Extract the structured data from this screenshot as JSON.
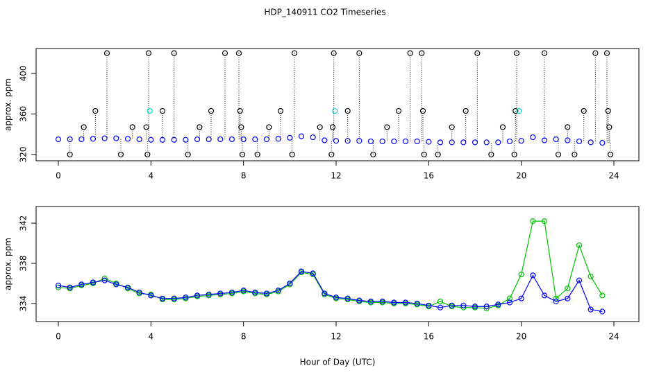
{
  "title": "HDP_140911  CO2 Timeseries",
  "chart_data": [
    {
      "type": "scatter",
      "y_label": "approx. ppm",
      "xlim": [
        -0.96,
        25.08
      ],
      "xticks": [
        0,
        4,
        8,
        12,
        16,
        20,
        24
      ],
      "ylim": [
        313.8,
        424.6
      ],
      "yticks": [
        320,
        360,
        400
      ],
      "series": [
        {
          "color": "#0000ff",
          "marker": "circle",
          "x": [
            0,
            0.5,
            1,
            1.5,
            2,
            2.5,
            3,
            3.5,
            4,
            4.5,
            5,
            5.5,
            6,
            6.5,
            7,
            7.5,
            8,
            8.5,
            9,
            9.5,
            10,
            10.5,
            11,
            11.5,
            12,
            12.5,
            13,
            13.5,
            14,
            14.5,
            15,
            15.5,
            16,
            16.5,
            17,
            17.5,
            18,
            18.5,
            19,
            19.5,
            20,
            20.5,
            21,
            21.5,
            22,
            22.5,
            23,
            23.5
          ],
          "values": [
            335,
            335,
            335,
            335.5,
            336,
            336,
            335.5,
            335,
            334.5,
            334.5,
            334.5,
            334.5,
            335,
            335,
            335,
            335,
            335,
            335,
            335,
            335.5,
            336.5,
            338,
            337,
            334,
            333.5,
            333.5,
            333.5,
            333,
            333,
            333,
            333,
            333,
            332.5,
            332,
            332,
            332,
            332,
            332,
            332,
            333,
            333.5,
            337,
            334,
            335,
            334,
            333,
            332,
            331.5
          ]
        },
        {
          "color": "#000000",
          "marker": "circle",
          "droplines": true,
          "x": [
            0.5,
            1.1,
            1.6,
            2.1,
            2.7,
            3.2,
            3.8,
            3.85,
            3.9,
            4.5,
            5.0,
            5.6,
            6.1,
            6.6,
            7.2,
            7.8,
            7.85,
            7.9,
            7.95,
            8.6,
            9.1,
            9.6,
            10.1,
            10.2,
            11.3,
            11.8,
            11.85,
            11.9,
            12.5,
            13.0,
            13.6,
            14.2,
            14.7,
            15.2,
            15.7,
            15.75,
            15.8,
            16.4,
            17.0,
            17.6,
            18.1,
            18.7,
            19.2,
            19.8,
            19.75,
            19.7,
            21.0,
            21.6,
            22.0,
            22.3,
            22.7,
            23.2,
            23.7,
            23.75,
            23.8,
            23.85
          ],
          "values": [
            320,
            347,
            363,
            420,
            320,
            347,
            347,
            320,
            420,
            363,
            420,
            320,
            347,
            363,
            420,
            420,
            363,
            347,
            320,
            320,
            347,
            363,
            320,
            420,
            347,
            320,
            347,
            420,
            363,
            420,
            320,
            347,
            363,
            420,
            420,
            363,
            320,
            320,
            347,
            363,
            420,
            320,
            347,
            420,
            363,
            320,
            420,
            320,
            347,
            320,
            363,
            420,
            420,
            363,
            347,
            320
          ]
        },
        {
          "color": "#00d0d0",
          "marker": "circle",
          "x": [
            3.95,
            11.95,
            19.9
          ],
          "values": [
            363,
            363,
            363
          ]
        }
      ]
    },
    {
      "type": "line",
      "y_label": "approx. ppm",
      "x_label": "Hour of Day (UTC)",
      "xlim": [
        -0.96,
        25.08
      ],
      "xticks": [
        0,
        4,
        8,
        12,
        16,
        20,
        24
      ],
      "ylim": [
        332.2,
        343.66
      ],
      "yticks": [
        334,
        338,
        342
      ],
      "series": [
        {
          "color": "#00c000",
          "marker": "circle",
          "x": [
            0,
            0.5,
            1,
            1.5,
            2,
            2.5,
            3,
            3.5,
            4,
            4.5,
            5,
            5.5,
            6,
            6.5,
            7,
            7.5,
            8,
            8.5,
            9,
            9.5,
            10,
            10.5,
            11,
            11.5,
            12,
            12.5,
            13,
            13.5,
            14,
            14.5,
            15,
            15.5,
            16,
            16.5,
            17,
            17.5,
            18,
            18.5,
            19,
            19.5,
            20,
            20.5,
            21,
            21.5,
            22,
            22.5,
            23,
            23.5
          ],
          "values": [
            335.6,
            335.5,
            335.8,
            336.0,
            336.5,
            336.0,
            335.5,
            335.0,
            334.9,
            334.4,
            334.4,
            334.5,
            334.7,
            334.8,
            334.9,
            335.0,
            335.2,
            335.0,
            334.9,
            335.2,
            335.9,
            337.1,
            336.9,
            334.9,
            334.5,
            334.4,
            334.2,
            334.1,
            334.1,
            334.0,
            334.0,
            333.9,
            333.7,
            334.2,
            333.7,
            333.6,
            333.6,
            333.5,
            333.8,
            334.5,
            336.9,
            342.2,
            342.2,
            334.5,
            335.5,
            339.8,
            336.7,
            334.8
          ]
        },
        {
          "color": "#0000ff",
          "marker": "circle",
          "x": [
            0,
            0.5,
            1,
            1.5,
            2,
            2.5,
            3,
            3.5,
            4,
            4.5,
            5,
            5.5,
            6,
            6.5,
            7,
            7.5,
            8,
            8.5,
            9,
            9.5,
            10,
            10.5,
            11,
            11.5,
            12,
            12.5,
            13,
            13.5,
            14,
            14.5,
            15,
            15.5,
            16,
            16.5,
            17,
            17.5,
            18,
            18.5,
            19,
            19.5,
            20,
            20.5,
            21,
            21.5,
            22,
            22.5,
            23,
            23.5
          ],
          "values": [
            335.8,
            335.6,
            335.9,
            336.1,
            336.3,
            335.9,
            335.6,
            335.1,
            334.8,
            334.5,
            334.5,
            334.6,
            334.8,
            334.9,
            335.0,
            335.1,
            335.3,
            335.1,
            335.0,
            335.3,
            336.0,
            337.2,
            337.0,
            335.0,
            334.6,
            334.5,
            334.3,
            334.2,
            334.2,
            334.1,
            334.1,
            334.0,
            333.8,
            333.6,
            333.8,
            333.8,
            333.7,
            333.7,
            333.9,
            334.1,
            334.5,
            336.8,
            334.8,
            334.2,
            334.5,
            336.3,
            333.4,
            333.2
          ]
        }
      ]
    }
  ]
}
